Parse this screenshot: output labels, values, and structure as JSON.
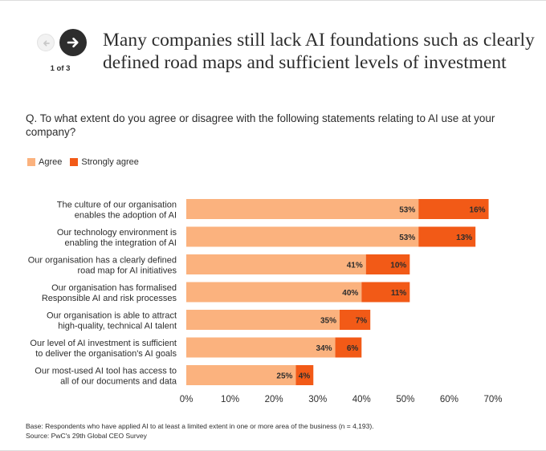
{
  "navigation": {
    "prev_icon": "arrow-left-icon",
    "next_icon": "arrow-right-icon",
    "pager_text": "1 of 3"
  },
  "header": {
    "title": "Many companies still lack AI foundations such as clearly defined road maps and sufficient levels of investment"
  },
  "question": "Q. To what extent do you agree or disagree with the following statements relating to AI use at your company?",
  "colors": {
    "agree": "#fbb27e",
    "strongly_agree": "#f25a17",
    "text": "#2d2d2d",
    "divider": "#dcdcdc"
  },
  "chart_data": {
    "type": "bar",
    "orientation": "horizontal",
    "stacked": true,
    "categories": [
      "The culture of our organisation enables the adoption of AI",
      "Our technology environment is enabling the integration of AI",
      "Our organisation has a clearly defined road map for AI initiatives",
      "Our organisation has formalised Responsible AI and risk processes",
      "Our organisation is able to attract high-quality, technical AI talent",
      "Our level of AI investment is sufficient to deliver the organisation's AI goals",
      "Our most-used AI tool has access to all of our documents and data"
    ],
    "category_lines": [
      [
        "The culture of our organisation",
        "enables the adoption of AI"
      ],
      [
        "Our technology environment is",
        "enabling the integration of AI"
      ],
      [
        "Our organisation has a clearly defined",
        "road map for AI initiatives"
      ],
      [
        "Our organisation has formalised",
        "Responsible AI and risk processes"
      ],
      [
        "Our organisation is able to attract",
        "high-quality, technical AI talent"
      ],
      [
        "Our level of AI investment is sufficient",
        "to deliver the organisation's AI goals"
      ],
      [
        "Our most-used AI tool has access to",
        "all of our documents and data"
      ]
    ],
    "series": [
      {
        "name": "Agree",
        "values": [
          53,
          53,
          41,
          40,
          35,
          34,
          25
        ],
        "labels": [
          "53%",
          "53%",
          "41%",
          "40%",
          "35%",
          "34%",
          "25%"
        ]
      },
      {
        "name": "Strongly agree",
        "values": [
          16,
          13,
          10,
          11,
          7,
          6,
          4
        ],
        "labels": [
          "16%",
          "13%",
          "10%",
          "11%",
          "7%",
          "6%",
          "4%"
        ]
      }
    ],
    "xlim": [
      0,
      70
    ],
    "xticks": [
      0,
      10,
      20,
      30,
      40,
      50,
      60,
      70
    ],
    "xtick_labels": [
      "0%",
      "10%",
      "20%",
      "30%",
      "40%",
      "50%",
      "60%",
      "70%"
    ],
    "legend": "top-left",
    "grid": false
  },
  "footnote": {
    "base": "Base: Respondents who have applied AI to at least a limited extent in one or more area of the business (n = 4,193).",
    "source": "Source: PwC's 29th Global CEO Survey"
  }
}
